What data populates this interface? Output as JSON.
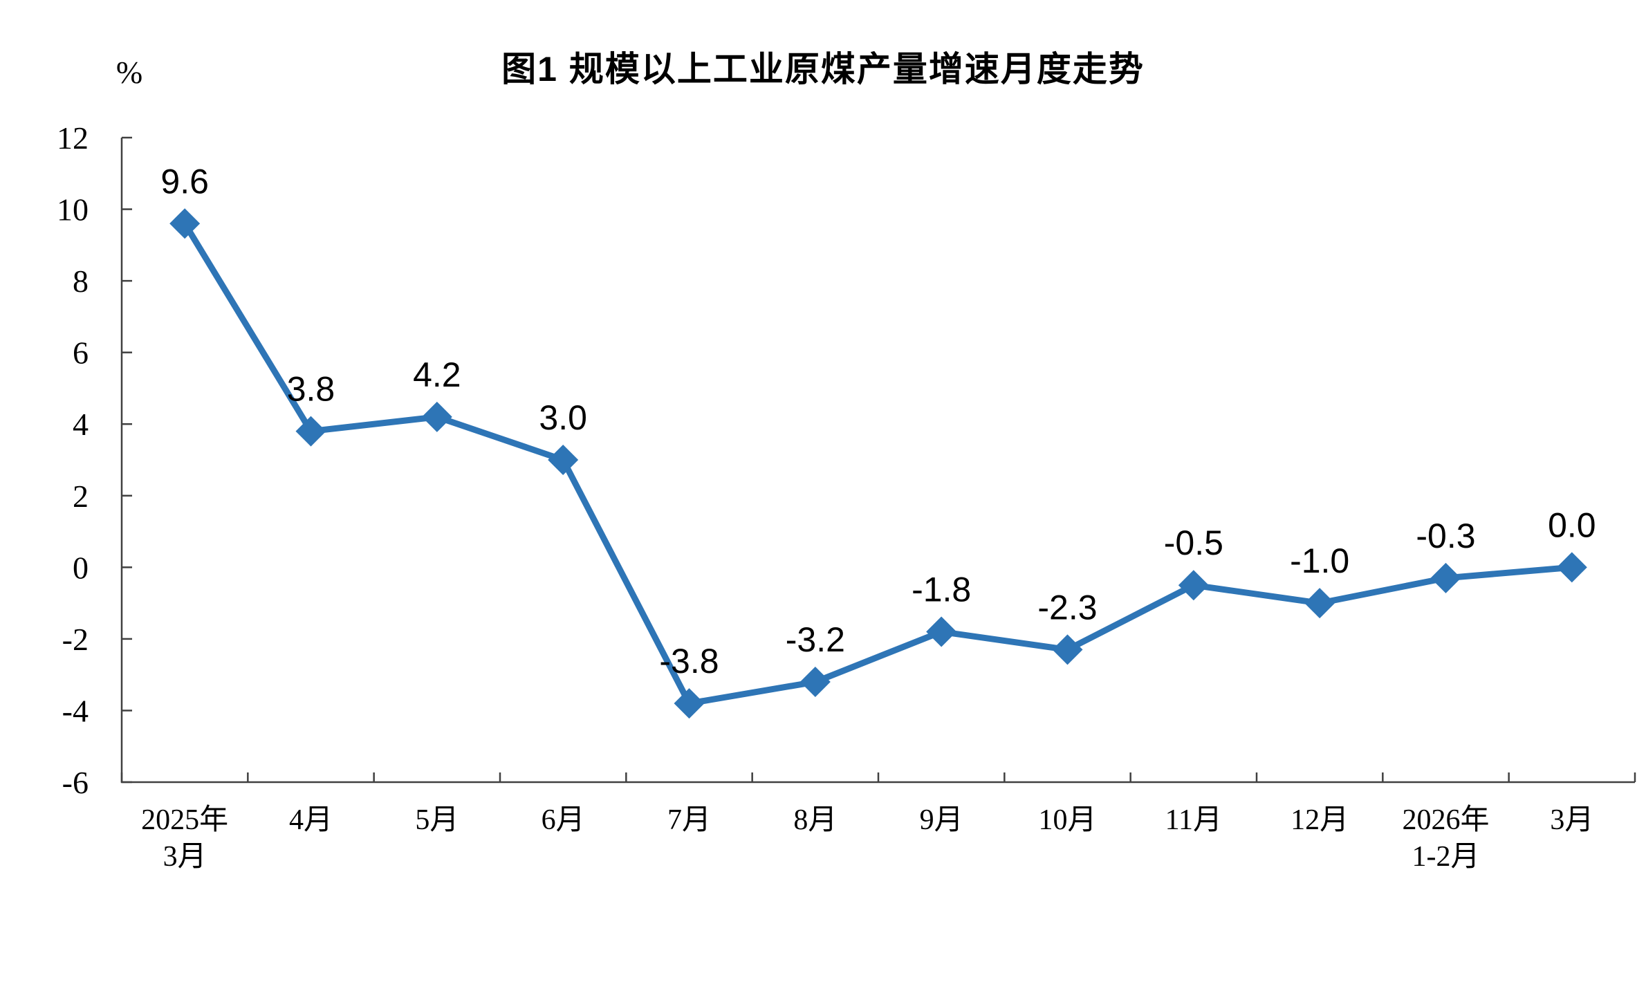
{
  "title": "图1 规模以上工业原煤产量增速月度走势",
  "y_unit_label": "%",
  "chart_data": {
    "type": "line",
    "title": "图1 规模以上工业原煤产量增速月度走势",
    "categories": [
      "2025年\n3月",
      "4月",
      "5月",
      "6月",
      "7月",
      "8月",
      "9月",
      "10月",
      "11月",
      "12月",
      "2026年\n1-2月",
      "3月"
    ],
    "values": [
      9.6,
      3.8,
      4.2,
      3.0,
      -3.8,
      -3.2,
      -1.8,
      -2.3,
      -0.5,
      -1.0,
      -0.3,
      0.0
    ],
    "data_labels": [
      "9.6",
      "3.8",
      "4.2",
      "3.0",
      "-3.8",
      "-3.2",
      "-1.8",
      "-2.3",
      "-0.5",
      "-1.0",
      "-0.3",
      "0.0"
    ],
    "ylabel": "%",
    "ylim": [
      -6,
      12
    ],
    "ytick_step": 2,
    "yticks": [
      12,
      10,
      8,
      6,
      4,
      2,
      0,
      -2,
      -4,
      -6
    ],
    "grid": false,
    "legend_position": "none",
    "marker": "diamond",
    "line_color": "#2E75B6",
    "axis_color": "#404040",
    "text_color": "#000000"
  }
}
